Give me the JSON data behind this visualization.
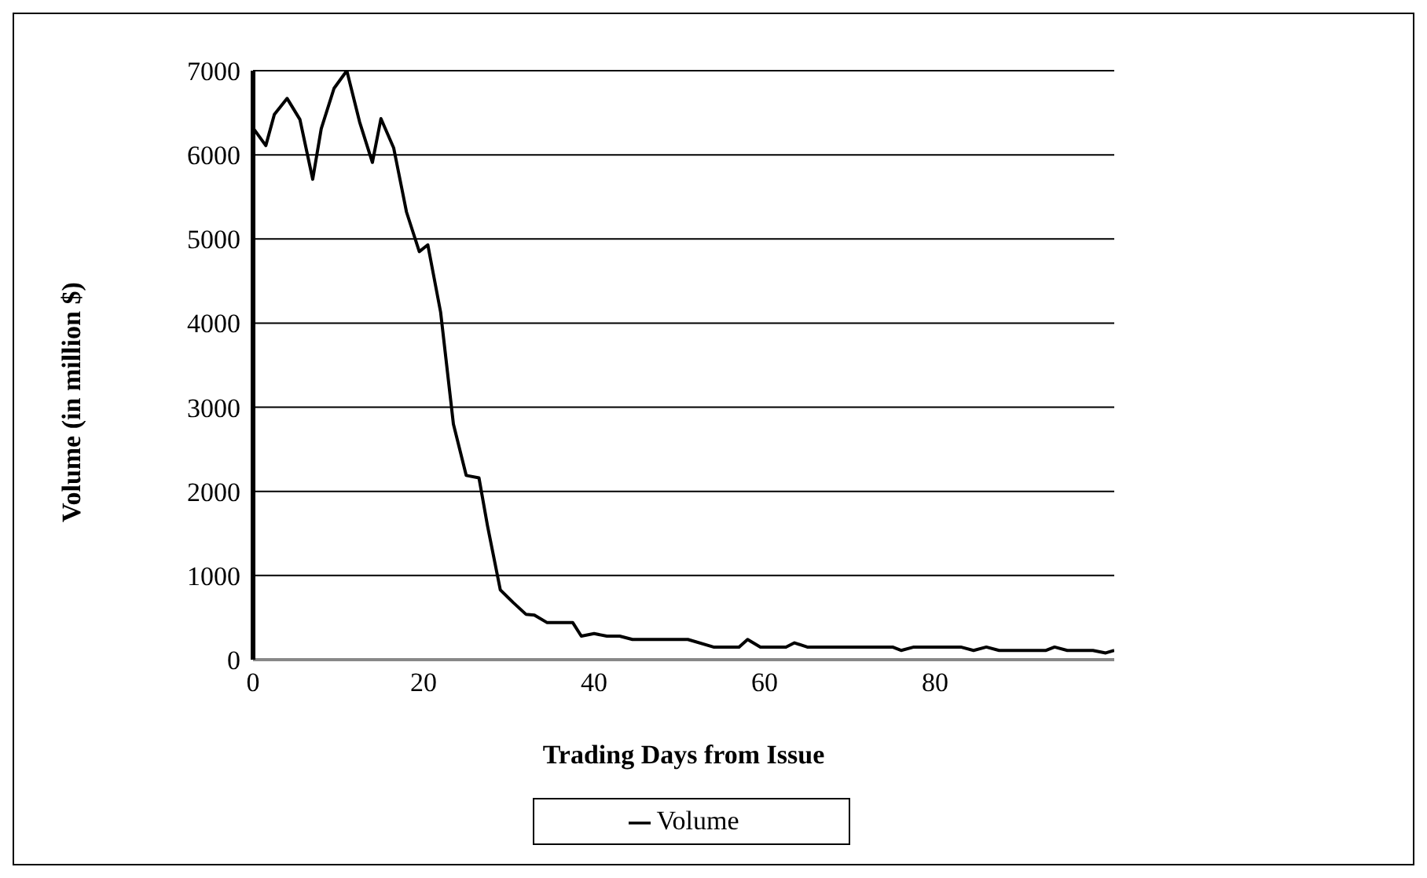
{
  "chart_data": {
    "type": "line",
    "xlabel": "Trading Days from Issue",
    "ylabel": "Volume (in million $)",
    "series": [
      {
        "name": "Volume",
        "color": "#000000",
        "x": [
          0,
          1.5,
          2.5,
          4,
          5.5,
          7,
          8,
          9.5,
          11,
          12.5,
          14,
          15,
          16.5,
          18,
          19.5,
          20.5,
          22,
          23.5,
          25,
          26.5,
          27.5,
          29,
          30.5,
          32,
          33,
          34.5,
          37.5,
          38.5,
          40,
          41.5,
          43,
          44.5,
          51,
          54,
          57,
          58,
          59.5,
          62.5,
          63.5,
          65,
          75,
          76,
          77.5,
          83,
          84.5,
          86,
          87.5,
          93,
          94,
          95.5,
          98.5,
          100,
          101
        ],
        "values": [
          6320,
          6110,
          6480,
          6670,
          6420,
          5710,
          6310,
          6790,
          7000,
          6390,
          5910,
          6430,
          6080,
          5320,
          4850,
          4930,
          4130,
          2800,
          2190,
          2160,
          1590,
          830,
          680,
          540,
          530,
          440,
          440,
          280,
          310,
          280,
          280,
          240,
          240,
          150,
          150,
          240,
          150,
          150,
          200,
          150,
          150,
          110,
          150,
          150,
          110,
          150,
          110,
          110,
          150,
          110,
          110,
          80,
          110
        ]
      }
    ],
    "xlim": [
      0,
      101
    ],
    "xticks": [
      0,
      20,
      40,
      60,
      80
    ],
    "ylim": [
      0,
      7000
    ],
    "yticks": [
      0,
      1000,
      2000,
      3000,
      4000,
      5000,
      6000,
      7000
    ],
    "grid": "y",
    "legend": "bottom",
    "marker": "none",
    "line_style": "solid"
  }
}
